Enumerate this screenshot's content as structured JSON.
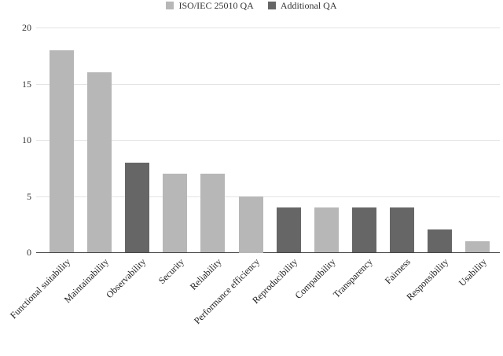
{
  "chart_data": {
    "type": "bar",
    "title": "",
    "xlabel": "",
    "ylabel": "",
    "ylim": [
      0,
      20
    ],
    "yticks": [
      0,
      5,
      10,
      15,
      20
    ],
    "grid": true,
    "legend_position": "top",
    "legend": [
      {
        "name": "ISO/IEC 25010 QA",
        "color": "#b7b7b7"
      },
      {
        "name": "Additional QA",
        "color": "#666666"
      }
    ],
    "categories": [
      "Functional suitability",
      "Maintainability",
      "Observability",
      "Security",
      "Reliability",
      "Performance efficiency",
      "Reproducibility",
      "Compatibility",
      "Transparency",
      "Fairness",
      "Responsibility",
      "Usability"
    ],
    "values": [
      18,
      16,
      8,
      7,
      7,
      5,
      4,
      4,
      4,
      4,
      2,
      1
    ],
    "groups": [
      "ISO/IEC 25010 QA",
      "ISO/IEC 25010 QA",
      "Additional QA",
      "ISO/IEC 25010 QA",
      "ISO/IEC 25010 QA",
      "ISO/IEC 25010 QA",
      "Additional QA",
      "ISO/IEC 25010 QA",
      "Additional QA",
      "Additional QA",
      "Additional QA",
      "ISO/IEC 25010 QA"
    ],
    "series": [
      {
        "name": "ISO/IEC 25010 QA",
        "values": [
          18,
          16,
          null,
          7,
          7,
          5,
          null,
          4,
          null,
          null,
          null,
          1
        ]
      },
      {
        "name": "Additional QA",
        "values": [
          null,
          null,
          8,
          null,
          null,
          null,
          4,
          null,
          4,
          4,
          2,
          null
        ]
      }
    ]
  },
  "colors": {
    "iso": "#b7b7b7",
    "additional": "#666666",
    "grid": "#e4e4e4",
    "axis": "#444444"
  },
  "legend": {
    "iso_label": "ISO/IEC 25010 QA",
    "additional_label": "Additional QA"
  }
}
